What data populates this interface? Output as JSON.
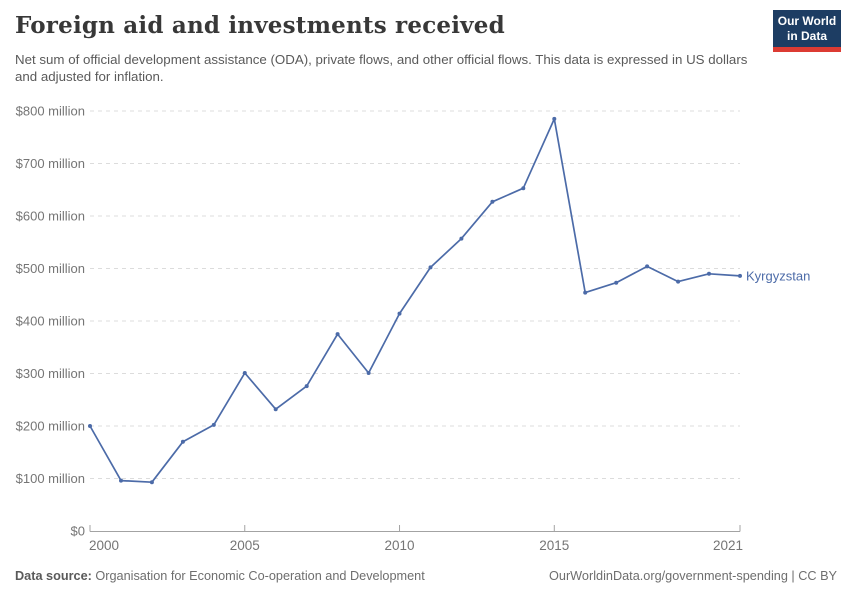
{
  "header": {
    "title": "Foreign aid and investments received",
    "subtitle": "Net sum of official development assistance (ODA), private flows, and other official flows. This data is expressed in US dollars and adjusted for inflation.",
    "logo": {
      "line1": "Our World",
      "line2": "in Data"
    }
  },
  "chart_data": {
    "type": "line",
    "title": "Foreign aid and investments received",
    "entity": "Kyrgyzstan",
    "unit": "US$ million (inflation adjusted)",
    "x": [
      2000,
      2001,
      2002,
      2003,
      2004,
      2005,
      2006,
      2007,
      2008,
      2009,
      2010,
      2011,
      2012,
      2013,
      2014,
      2015,
      2016,
      2017,
      2018,
      2019,
      2020,
      2021
    ],
    "series": [
      {
        "name": "Kyrgyzstan",
        "values": [
          200,
          96,
          93,
          170,
          202,
          301,
          232,
          276,
          375,
          301,
          414,
          502,
          557,
          627,
          653,
          785,
          454,
          473,
          504,
          475,
          490,
          486
        ]
      }
    ],
    "xlim": [
      2000,
      2021
    ],
    "ylim": [
      0,
      800
    ],
    "yticks": [
      0,
      100,
      200,
      300,
      400,
      500,
      600,
      700,
      800
    ],
    "ytick_labels": [
      "$0",
      "$100 million",
      "$200 million",
      "$300 million",
      "$400 million",
      "$500 million",
      "$600 million",
      "$700 million",
      "$800 million"
    ],
    "xticks": [
      2000,
      2005,
      2010,
      2015,
      2021
    ],
    "xtick_labels": [
      "2000",
      "2005",
      "2010",
      "2015",
      "2021"
    ],
    "grid": "horizontal-dashed",
    "legend": "line-end-label",
    "colors": {
      "line": "#4c6ba8",
      "label": "#4c6ba8",
      "grid": "#dcdcdc",
      "axis": "#a3a3a3",
      "tick_text": "#757575"
    }
  },
  "footer": {
    "source_label": "Data source:",
    "source_text": " Organisation for Economic Co-operation and Development",
    "credit": "OurWorldinData.org/government-spending | CC BY"
  }
}
